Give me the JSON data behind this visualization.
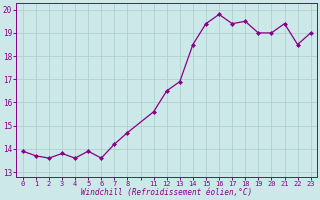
{
  "x": [
    0,
    1,
    2,
    3,
    4,
    5,
    6,
    7,
    8,
    11,
    12,
    13,
    14,
    15,
    16,
    17,
    18,
    19,
    20,
    21,
    22,
    23
  ],
  "y": [
    13.9,
    13.7,
    13.6,
    13.8,
    13.6,
    13.9,
    13.6,
    14.2,
    14.7,
    15.6,
    16.5,
    16.9,
    18.5,
    19.4,
    19.8,
    19.4,
    19.5,
    19.0,
    19.0,
    19.4,
    18.5,
    19.0
  ],
  "line_color": "#880088",
  "marker_color": "#880088",
  "bg_color": "#cce8e8",
  "grid_color": "#aacccc",
  "xlabel": "Windchill (Refroidissement éolien,°C)",
  "xtick_labels": [
    "0",
    "1",
    "2",
    "3",
    "4",
    "5",
    "6",
    "7",
    "8",
    "",
    "11",
    "12",
    "13",
    "14",
    "15",
    "16",
    "17",
    "18",
    "19",
    "20",
    "21",
    "22",
    "23"
  ],
  "xtick_positions": [
    0,
    1,
    2,
    3,
    4,
    5,
    6,
    7,
    8,
    9,
    10,
    11,
    12,
    13,
    14,
    15,
    16,
    17,
    18,
    19,
    20,
    21,
    22
  ],
  "x_remapped": [
    0,
    1,
    2,
    3,
    4,
    5,
    6,
    7,
    8,
    10,
    11,
    12,
    13,
    14,
    15,
    16,
    17,
    18,
    19,
    20,
    21,
    22
  ],
  "yticks": [
    13,
    14,
    15,
    16,
    17,
    18,
    19,
    20
  ],
  "ylim": [
    12.8,
    20.3
  ],
  "xlim": [
    -0.5,
    22.5
  ]
}
